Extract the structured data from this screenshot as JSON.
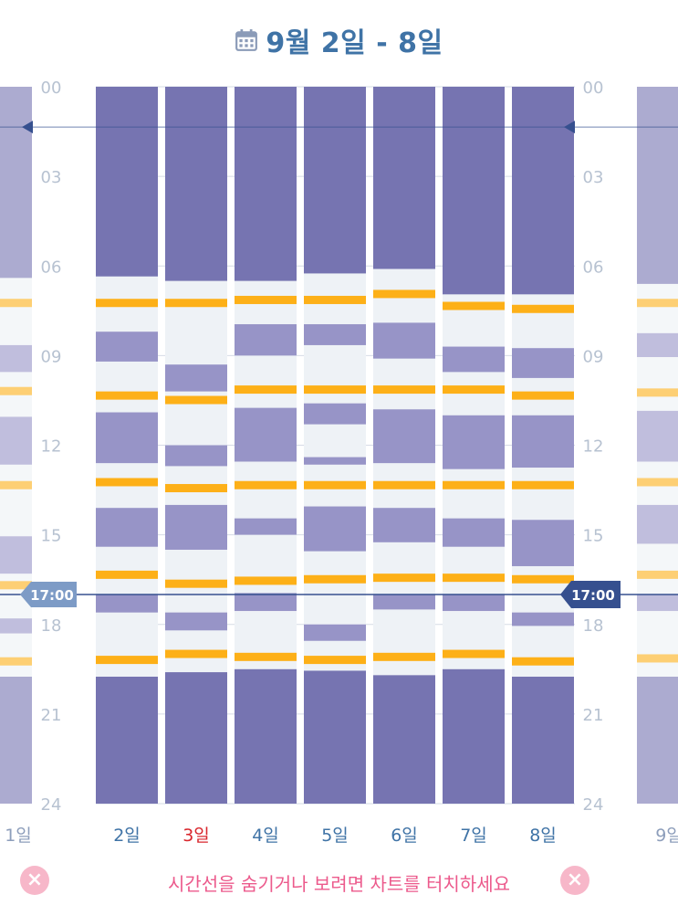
{
  "header": {
    "title": "9월 2일 - 8일",
    "icon": "calendar-icon"
  },
  "footer": {
    "hint": "시간선을 숨기거나 보려면 차트를 터치하세요",
    "close_icon": "close-icon"
  },
  "colors": {
    "sleep": "#7674b1",
    "nap": "#9794c7",
    "awake": "#eef2f6",
    "feeding": "#fdb018",
    "time_line": "#36508f",
    "axis_text": "#b7c2d1",
    "day_label": "#3f73a6",
    "weekend_label": "#d9262c",
    "hint": "#ec5a8c"
  },
  "chart_data": {
    "type": "timeline",
    "y_unit": "hour of day",
    "ylim": [
      0,
      24
    ],
    "y_ticks": [
      "00",
      "03",
      "06",
      "09",
      "12",
      "15",
      "18",
      "21",
      "24"
    ],
    "current_time": 17.0,
    "current_time_label": "17:00",
    "days": [
      {
        "label": "2일",
        "highlight": false,
        "sleep": [
          [
            0,
            6.35
          ],
          [
            19.75,
            24
          ]
        ],
        "naps": [
          [
            8.2,
            9.2
          ],
          [
            10.9,
            12.6
          ],
          [
            14.1,
            15.4
          ],
          [
            17.0,
            17.6
          ]
        ],
        "feeds": [
          7.1,
          10.2,
          13.1,
          16.2,
          19.05
        ]
      },
      {
        "label": "3일",
        "highlight": true,
        "sleep": [
          [
            0,
            6.5
          ],
          [
            19.6,
            24
          ]
        ],
        "naps": [
          [
            9.3,
            10.2
          ],
          [
            12.0,
            12.7
          ],
          [
            14.0,
            15.5
          ],
          [
            17.6,
            18.2
          ]
        ],
        "feeds": [
          7.1,
          10.35,
          13.3,
          16.5,
          18.85
        ]
      },
      {
        "label": "4일",
        "highlight": false,
        "sleep": [
          [
            0,
            6.5
          ],
          [
            19.5,
            24
          ]
        ],
        "naps": [
          [
            7.95,
            9.0
          ],
          [
            10.75,
            12.55
          ],
          [
            14.45,
            15.0
          ],
          [
            16.95,
            17.55
          ]
        ],
        "feeds": [
          7.0,
          10.0,
          13.2,
          16.4,
          18.95
        ]
      },
      {
        "label": "5일",
        "highlight": false,
        "sleep": [
          [
            0,
            6.25
          ],
          [
            19.55,
            24
          ]
        ],
        "naps": [
          [
            7.95,
            8.65
          ],
          [
            10.6,
            11.3
          ],
          [
            12.4,
            12.65
          ],
          [
            14.05,
            15.55
          ],
          [
            18.0,
            18.55
          ]
        ],
        "feeds": [
          7.0,
          10.0,
          13.2,
          16.35,
          19.05
        ]
      },
      {
        "label": "6일",
        "highlight": false,
        "sleep": [
          [
            0,
            6.1
          ],
          [
            19.7,
            24
          ]
        ],
        "naps": [
          [
            7.9,
            9.1
          ],
          [
            10.8,
            12.6
          ],
          [
            14.1,
            15.25
          ],
          [
            17.0,
            17.5
          ]
        ],
        "feeds": [
          6.8,
          10.0,
          13.2,
          16.3,
          18.95
        ]
      },
      {
        "label": "7일",
        "highlight": false,
        "sleep": [
          [
            0,
            6.95
          ],
          [
            19.5,
            24
          ]
        ],
        "naps": [
          [
            8.7,
            9.55
          ],
          [
            11.0,
            12.8
          ],
          [
            14.45,
            15.4
          ],
          [
            17.0,
            17.55
          ]
        ],
        "feeds": [
          7.2,
          10.0,
          13.2,
          16.3,
          18.85
        ]
      },
      {
        "label": "8일",
        "highlight": false,
        "sleep": [
          [
            0,
            6.95
          ],
          [
            19.75,
            24
          ]
        ],
        "naps": [
          [
            8.75,
            9.75
          ],
          [
            11.0,
            12.75
          ],
          [
            14.5,
            16.05
          ],
          [
            17.6,
            18.05
          ]
        ],
        "feeds": [
          7.3,
          10.2,
          13.2,
          16.35,
          19.1
        ]
      }
    ],
    "prev_week": {
      "label": "1일",
      "sleep": [
        [
          0,
          6.4
        ],
        [
          19.75,
          24
        ]
      ],
      "naps": [
        [
          8.65,
          9.55
        ],
        [
          11.05,
          12.65
        ],
        [
          15.05,
          16.3
        ],
        [
          17.8,
          18.3
        ]
      ],
      "feeds": [
        7.1,
        10.05,
        13.2,
        16.55,
        19.1
      ]
    },
    "next_week": {
      "label": "9일",
      "sleep": [
        [
          0,
          6.6
        ],
        [
          19.75,
          24
        ]
      ],
      "naps": [
        [
          8.25,
          9.05
        ],
        [
          10.85,
          12.55
        ],
        [
          14.0,
          15.3
        ],
        [
          17.0,
          17.55
        ]
      ],
      "feeds": [
        7.1,
        10.1,
        13.1,
        16.2,
        19.0
      ]
    }
  }
}
